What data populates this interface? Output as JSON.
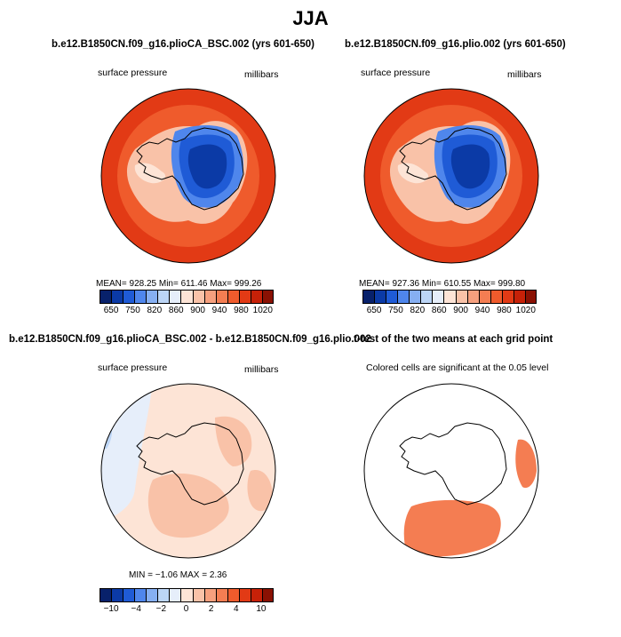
{
  "title": "JJA",
  "panels": [
    {
      "title": "b.e12.B1850CN.f09_g16.plioCA_BSC.002 (yrs 601-650)",
      "left_label": "surface pressure",
      "right_label": "millibars",
      "stats": "MEAN= 928.25   Min= 611.46   Max= 999.26"
    },
    {
      "title": "b.e12.B1850CN.f09_g16.plio.002 (yrs 601-650)",
      "left_label": "surface pressure",
      "right_label": "millibars",
      "stats": "MEAN= 927.36   Min= 610.55   Max= 999.80"
    },
    {
      "title": "b.e12.B1850CN.f09_g16.plioCA_BSC.002 - b.e12.B1850CN.f09_g16.plio.002",
      "left_label": "surface pressure",
      "right_label": "millibars",
      "stats": "MIN =   −1.06   MAX =    2.36"
    },
    {
      "title": "t-test of the two means at each grid point",
      "left_label": "Colored cells are significant at the 0.05 level"
    }
  ],
  "chart_data": [
    {
      "type": "heatmap",
      "title": "b.e12.B1850CN.f09_g16.plioCA_BSC.002 (yrs 601-650)",
      "variable": "surface pressure",
      "units": "millibars",
      "mean": 928.25,
      "min": 611.46,
      "max": 999.26,
      "colorbar_ticks": [
        "650",
        "750",
        "820",
        "860",
        "900",
        "940",
        "980",
        "1020"
      ],
      "colors": [
        "#08216b",
        "#0b3aa6",
        "#1f5bd6",
        "#4f86ec",
        "#86aff2",
        "#bcd5f6",
        "#e6eefa",
        "#fde4d6",
        "#f9c2a8",
        "#f6a07e",
        "#f47d52",
        "#ef5b2c",
        "#e23a15",
        "#c62108",
        "#8a1103"
      ]
    },
    {
      "type": "heatmap",
      "title": "b.e12.B1850CN.f09_g16.plio.002 (yrs 601-650)",
      "variable": "surface pressure",
      "units": "millibars",
      "mean": 927.36,
      "min": 610.55,
      "max": 999.8,
      "colorbar_ticks": [
        "650",
        "750",
        "820",
        "860",
        "900",
        "940",
        "980",
        "1020"
      ]
    },
    {
      "type": "heatmap",
      "title": "b.e12.B1850CN.f09_g16.plioCA_BSC.002 - b.e12.B1850CN.f09_g16.plio.002",
      "variable": "surface pressure",
      "units": "millibars",
      "min": -1.06,
      "max": 2.36,
      "colorbar_ticks": [
        "-10",
        "-4",
        "-2",
        "0",
        "2",
        "4",
        "10"
      ],
      "colors": [
        "#08216b",
        "#0b3aa6",
        "#1f5bd6",
        "#4f86ec",
        "#86aff2",
        "#bcd5f6",
        "#e6eefa",
        "#fde4d6",
        "#f9c2a8",
        "#f6a07e",
        "#f47d52",
        "#ef5b2c",
        "#e23a15",
        "#c62108",
        "#8a1103"
      ]
    },
    {
      "type": "heatmap",
      "title": "t-test of the two means at each grid point",
      "note": "Colored cells are significant at the 0.05 level"
    }
  ]
}
